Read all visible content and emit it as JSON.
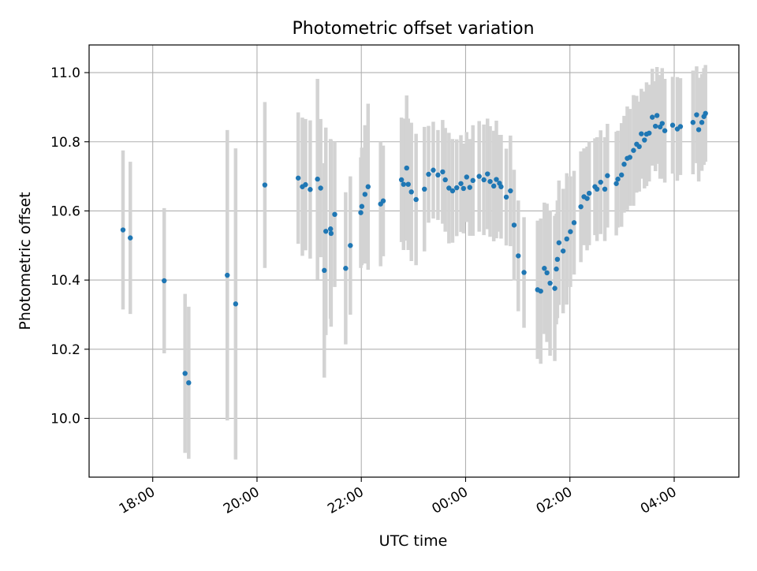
{
  "chart_data": {
    "type": "scatter",
    "title": "Photometric offset variation",
    "xlabel": "UTC time",
    "ylabel": "Photometric offset",
    "x_unit": "hours",
    "x_ticks": [
      {
        "value": 18,
        "label": "18:00"
      },
      {
        "value": 20,
        "label": "20:00"
      },
      {
        "value": 22,
        "label": "22:00"
      },
      {
        "value": 24,
        "label": "00:00"
      },
      {
        "value": 26,
        "label": "02:00"
      },
      {
        "value": 28,
        "label": "04:00"
      }
    ],
    "y_ticks": [
      "10.0",
      "10.2",
      "10.4",
      "10.6",
      "10.8",
      "11.0"
    ],
    "xlim": [
      16.78,
      29.24
    ],
    "ylim": [
      9.83,
      11.08
    ],
    "grid": true,
    "colors": {
      "marker": "#1f77b4",
      "errorbar": "#d3d3d3",
      "grid": "#b0b0b0"
    },
    "series": [
      {
        "x": [
          17.43,
          17.57,
          18.22,
          18.62,
          18.69,
          19.43,
          19.59,
          20.15,
          20.79,
          20.87,
          20.93,
          21.02,
          21.16,
          21.22,
          21.29,
          21.32,
          21.41,
          21.42,
          21.49,
          21.7,
          21.79,
          21.99,
          22.01,
          22.07,
          22.13,
          22.37,
          22.42,
          22.77,
          22.81,
          22.87,
          22.9,
          22.96,
          23.05,
          23.21,
          23.29,
          23.38,
          23.47,
          23.56,
          23.61,
          23.68,
          23.75,
          23.83,
          23.91,
          23.96,
          24.02,
          24.08,
          24.14,
          24.26,
          24.35,
          24.42,
          24.47,
          24.54,
          24.59,
          24.65,
          24.68,
          24.78,
          24.86,
          24.93,
          25.01,
          25.12,
          25.38,
          25.44,
          25.51,
          25.56,
          25.62,
          25.71,
          25.74,
          25.76,
          25.79,
          25.87,
          25.94,
          26.01,
          26.08,
          26.21,
          26.27,
          26.33,
          26.37,
          26.48,
          26.52,
          26.59,
          26.67,
          26.72,
          26.89,
          26.92,
          26.99,
          27.04,
          27.1,
          27.15,
          27.22,
          27.28,
          27.33,
          27.37,
          27.43,
          27.47,
          27.52,
          27.58,
          27.64,
          27.67,
          27.73,
          27.77,
          27.82,
          27.97,
          28.06,
          28.12,
          28.36,
          28.43,
          28.47,
          28.53,
          28.57,
          28.6
        ],
        "y": [
          10.545,
          10.522,
          10.398,
          10.13,
          10.103,
          10.414,
          10.331,
          10.675,
          10.695,
          10.67,
          10.676,
          10.662,
          10.692,
          10.666,
          10.428,
          10.541,
          10.548,
          10.535,
          10.59,
          10.434,
          10.5,
          10.595,
          10.613,
          10.648,
          10.67,
          10.62,
          10.629,
          10.69,
          10.677,
          10.724,
          10.677,
          10.655,
          10.633,
          10.663,
          10.706,
          10.718,
          10.704,
          10.713,
          10.69,
          10.666,
          10.658,
          10.667,
          10.679,
          10.665,
          10.698,
          10.668,
          10.688,
          10.7,
          10.69,
          10.707,
          10.685,
          10.672,
          10.691,
          10.68,
          10.67,
          10.64,
          10.658,
          10.559,
          10.47,
          10.422,
          10.372,
          10.368,
          10.434,
          10.421,
          10.391,
          10.376,
          10.432,
          10.46,
          10.508,
          10.484,
          10.519,
          10.54,
          10.566,
          10.612,
          10.641,
          10.636,
          10.651,
          10.67,
          10.663,
          10.683,
          10.663,
          10.702,
          10.679,
          10.692,
          10.704,
          10.735,
          10.752,
          10.755,
          10.775,
          10.793,
          10.786,
          10.823,
          10.805,
          10.822,
          10.825,
          10.871,
          10.845,
          10.876,
          10.843,
          10.853,
          10.832,
          10.848,
          10.837,
          10.844,
          10.856,
          10.878,
          10.835,
          10.856,
          10.873,
          10.882
        ],
        "yerr": [
          0.23,
          0.22,
          0.21,
          0.23,
          0.22,
          0.42,
          0.45,
          0.24,
          0.19,
          0.2,
          0.19,
          0.2,
          0.29,
          0.2,
          0.31,
          0.3,
          0.26,
          0.27,
          0.21,
          0.22,
          0.2,
          0.16,
          0.17,
          0.2,
          0.24,
          0.18,
          0.16,
          0.18,
          0.19,
          0.21,
          0.19,
          0.2,
          0.19,
          0.18,
          0.14,
          0.14,
          0.13,
          0.15,
          0.15,
          0.16,
          0.15,
          0.14,
          0.14,
          0.13,
          0.13,
          0.14,
          0.16,
          0.16,
          0.16,
          0.16,
          0.16,
          0.16,
          0.17,
          0.14,
          0.15,
          0.14,
          0.16,
          0.16,
          0.16,
          0.16,
          0.2,
          0.21,
          0.19,
          0.2,
          0.21,
          0.21,
          0.16,
          0.17,
          0.18,
          0.18,
          0.19,
          0.16,
          0.15,
          0.16,
          0.14,
          0.15,
          0.15,
          0.14,
          0.15,
          0.15,
          0.15,
          0.15,
          0.15,
          0.14,
          0.15,
          0.14,
          0.15,
          0.14,
          0.16,
          0.14,
          0.13,
          0.13,
          0.14,
          0.15,
          0.14,
          0.14,
          0.13,
          0.14,
          0.15,
          0.16,
          0.15,
          0.14,
          0.15,
          0.14,
          0.15,
          0.14,
          0.15,
          0.14,
          0.14,
          0.14
        ]
      }
    ]
  }
}
